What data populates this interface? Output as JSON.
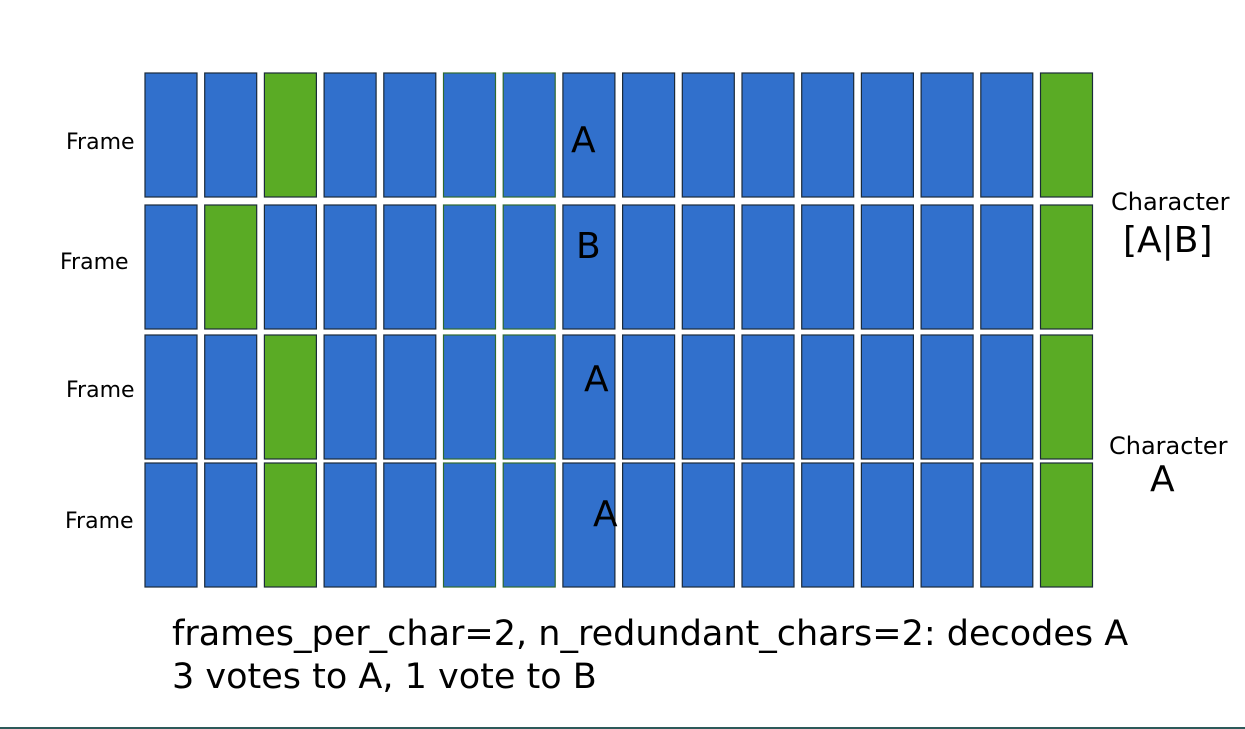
{
  "colors": {
    "blue": "#3170cc",
    "green": "#5aab25",
    "border": "#1a2a3a"
  },
  "rows": [
    {
      "frame_label": "Frame",
      "letter": "A",
      "green_cols": [
        2,
        15
      ]
    },
    {
      "frame_label": "Frame",
      "letter": "B",
      "green_cols": [
        1,
        15
      ]
    },
    {
      "frame_label": "Frame",
      "letter": "A",
      "green_cols": [
        2,
        15
      ]
    },
    {
      "frame_label": "Frame",
      "letter": "A",
      "green_cols": [
        2,
        15
      ]
    }
  ],
  "columns": 16,
  "characters": [
    {
      "label": "Character",
      "value": "[A|B]"
    },
    {
      "label": "Character",
      "value": "A"
    }
  ],
  "caption": {
    "line1": "frames_per_char=2, n_redundant_chars=2: decodes A",
    "line2": "3 votes to A, 1 vote to B"
  }
}
